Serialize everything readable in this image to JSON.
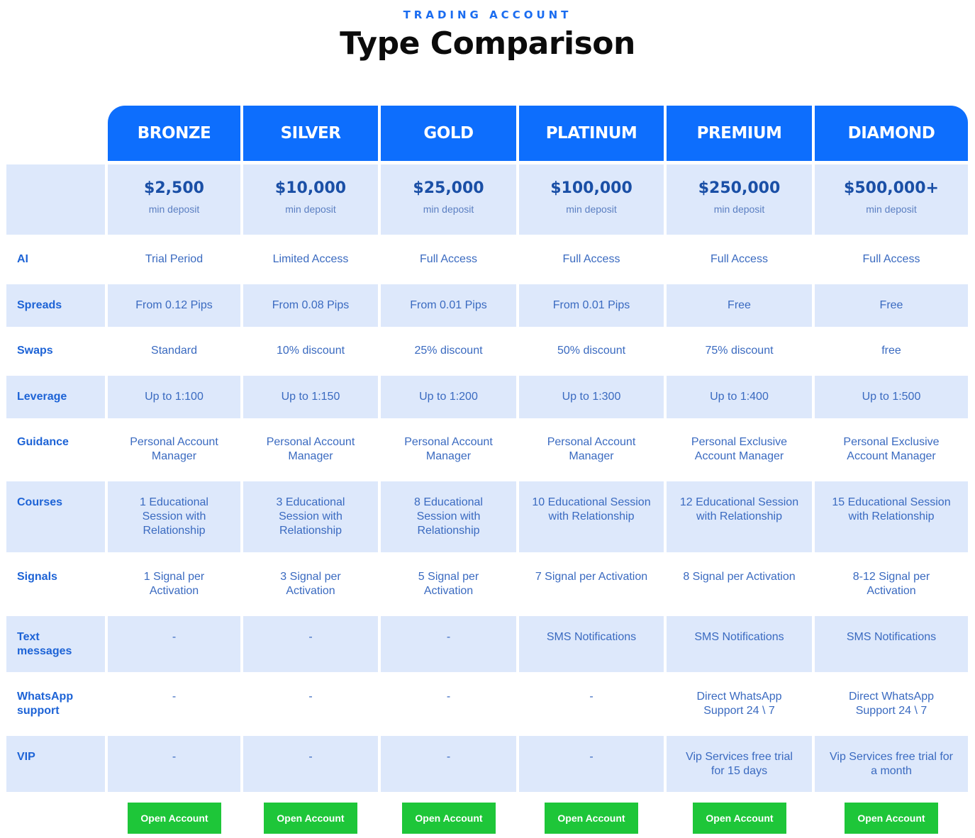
{
  "header": {
    "eyebrow": "TRADING ACCOUNT",
    "title": "Type Comparison"
  },
  "tiers": [
    {
      "name": "BRONZE",
      "price": "$2,500",
      "price_note": "min deposit"
    },
    {
      "name": "SILVER",
      "price": "$10,000",
      "price_note": "min deposit"
    },
    {
      "name": "GOLD",
      "price": "$25,000",
      "price_note": "min deposit"
    },
    {
      "name": "PLATINUM",
      "price": "$100,000",
      "price_note": "min deposit"
    },
    {
      "name": "PREMIUM",
      "price": "$250,000",
      "price_note": "min deposit"
    },
    {
      "name": "DIAMOND",
      "price": "$500,000+",
      "price_note": "min deposit"
    }
  ],
  "rows": [
    {
      "label": "AI",
      "values": [
        "Trial Period",
        "Limited Access",
        "Full Access",
        "Full Access",
        "Full Access",
        "Full Access"
      ]
    },
    {
      "label": "Spreads",
      "values": [
        "From 0.12 Pips",
        "From 0.08 Pips",
        "From 0.01 Pips",
        "From 0.01 Pips",
        "Free",
        "Free"
      ]
    },
    {
      "label": "Swaps",
      "values": [
        "Standard",
        "10% discount",
        "25% discount",
        "50% discount",
        "75% discount",
        "free"
      ]
    },
    {
      "label": "Leverage",
      "values": [
        "Up to 1:100",
        "Up to 1:150",
        "Up to 1:200",
        "Up to 1:300",
        "Up to 1:400",
        "Up to 1:500"
      ]
    },
    {
      "label": "Guidance",
      "values": [
        "Personal Account Manager",
        "Personal Account Manager",
        "Personal Account Manager",
        "Personal Account Manager",
        "Personal Exclusive Account Manager",
        "Personal Exclusive Account Manager"
      ]
    },
    {
      "label": "Courses",
      "values": [
        "1 Educational Session with Relationship",
        "3 Educational Session with Relationship",
        "8 Educational Session with Relationship",
        "10 Educational Session with Relationship",
        "12 Educational Session with Relationship",
        "15 Educational Session with Relationship"
      ]
    },
    {
      "label": "Signals",
      "values": [
        "1 Signal per Activation",
        "3 Signal per Activation",
        "5 Signal per Activation",
        "7 Signal per Activation",
        "8 Signal per Activation",
        "8-12 Signal per Activation"
      ]
    },
    {
      "label": "Text messages",
      "values": [
        "-",
        "-",
        "-",
        "SMS Notifications",
        "SMS Notifications",
        "SMS Notifications"
      ]
    },
    {
      "label": "WhatsApp support",
      "values": [
        "-",
        "-",
        "-",
        "-",
        "Direct WhatsApp Support 24 \\ 7",
        "Direct WhatsApp Support 24 \\ 7"
      ]
    },
    {
      "label": "VIP",
      "values": [
        "-",
        "-",
        "-",
        "-",
        "Vip Services free trial for 15 days",
        "Vip Services free trial for a month"
      ]
    }
  ],
  "actions": {
    "open_label": "Open Account"
  },
  "colors": {
    "brand_blue": "#0d6efd",
    "row_shade": "#dde8fb",
    "cta_green": "#1ec639"
  }
}
